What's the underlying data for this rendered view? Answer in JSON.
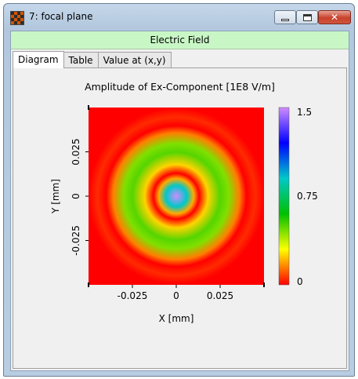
{
  "window": {
    "title": "7: focal plane",
    "buttons": {
      "minimize": "minimize",
      "maximize": "maximize",
      "close": "close"
    }
  },
  "banner": "Electric Field",
  "tabs": [
    {
      "label": "Diagram",
      "active": true
    },
    {
      "label": "Table",
      "active": false
    },
    {
      "label": "Value at (x,y)",
      "active": false
    }
  ],
  "chart_data": {
    "type": "heatmap",
    "title": "Amplitude of Ex-Component  [1E8 V/m]",
    "xlabel": "X [mm]",
    "ylabel": "Y [mm]",
    "xlim": [
      -0.05,
      0.05
    ],
    "ylim": [
      -0.05,
      0.05
    ],
    "x_ticks": [
      "-0.025",
      "0",
      "0.025"
    ],
    "y_ticks": [
      "0.025",
      "0",
      "-0.025"
    ],
    "colorbar": {
      "min": 0,
      "max": 1.5,
      "ticks": [
        "1.5",
        "0.75",
        "0"
      ],
      "colors": [
        "#ff0000",
        "#ffff00",
        "#00c000",
        "#00c8c8",
        "#0000ff",
        "#d08bff"
      ]
    },
    "radial_profile": {
      "r": [
        0,
        0.006,
        0.01,
        0.013,
        0.018,
        0.025,
        0.03,
        0.036,
        0.04,
        0.045,
        0.05
      ],
      "value": [
        1.5,
        0.9,
        0.2,
        0.0,
        0.25,
        0.5,
        0.45,
        0.15,
        0.0,
        0.05,
        0.0
      ]
    }
  }
}
